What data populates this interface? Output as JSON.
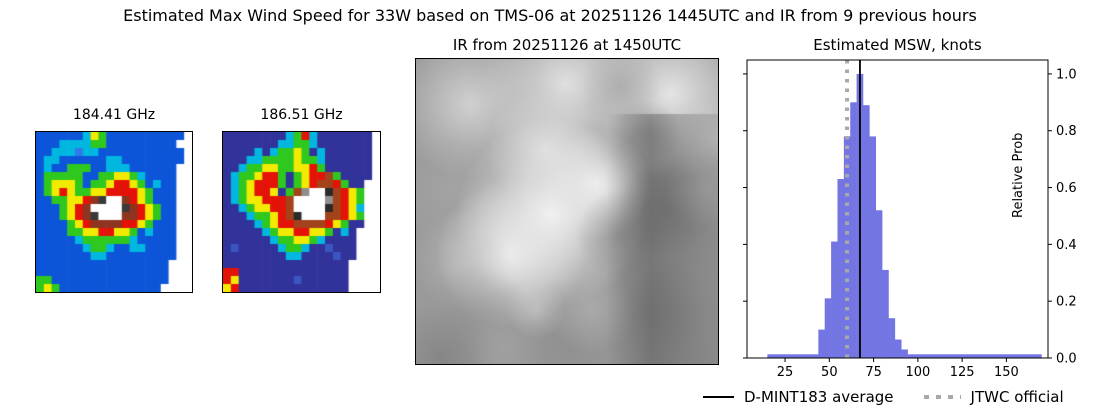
{
  "title": "Estimated Max Wind Speed for 33W based on TMS-06 at 20251126 1445UTC and IR from 9 previous hours",
  "panels": {
    "mw1": {
      "title": "184.41 GHz",
      "palette": {
        ".": "#0d55d8",
        "b": "#2f7ae8",
        "c": "#00b7e0",
        "g": "#2fc81e",
        "y": "#f2ea00",
        "o": "#ff9100",
        "r": "#e41207",
        "d": "#8d3520",
        "k": "#3a3a3a",
        "G": "#9a9a9a",
        "w": "#ffffff"
      },
      "grid": [
        "......cyg..........w",
        "...ccccgg.........ww",
        "..cccbcc...........w",
        ".cc......cc........w",
        ".c..ggg..ccc......ww",
        ".ggggg..ggyygc....ww",
        ".gyyyg.ggyrryg.c..ww",
        ".gyryggyyrrrryg...ww",
        "..ggyyrdkwwdryg...ww",
        "...gyrdwwwwkdryg..ww",
        "...gyrdkwwwddryg..ww",
        "....gyrddddrryg...ww",
        "....ggyyrryyg.c...ww",
        ".....cggggggc.....ww",
        "......cggc..cc....ww",
        ".......cc.........ww",
        ".................www",
        ".................www",
        "gg...............www",
        "gyg.............wwww"
      ]
    },
    "mw2": {
      "title": "186.51 GHz",
      "palette": {
        ".": "#32329b",
        "b": "#3c55c0",
        "c": "#00b7e0",
        "g": "#2fc81e",
        "y": "#f2ea00",
        "o": "#ff9100",
        "r": "#e41207",
        "d": "#a3431c",
        "k": "#2a2a2a",
        "G": "#8f8f8f",
        "w": "#ffffff"
      },
      "grid": [
        "........cgrc.......w",
        ".......ccggc.......w",
        "....c.cggyg.c......w",
        "...ccggggyggc......w",
        "..cggyyggyyrg......w",
        ".cggyrrg.gyrrdg....w",
        ".cgyrrrg.gyrddrg..ww",
        ".cgyrry.gdGwwkdrygww",
        ".cgyyrrrdwwwwGdrygww",
        "..cgyyrrdwwwwkdrycww",
        "...cggyrdkwwwddrygww",
        "....cgyrrddddryg..ww",
        ".....cgyyrryyg.c.www",
        "......cggyygc....www",
        ".b.....cggc..b...www",
        "........cc....b..www",
        "................wwww",
        "rr..............wwww",
        "ry.......b......wwww",
        "yr..............wwww"
      ]
    },
    "ir": {
      "title": "IR from 20251126 at 1450UTC",
      "background": "#9a9a9a",
      "blobs_xyrva": [
        [
          150,
          25,
          85,
          228,
          0.95
        ],
        [
          55,
          45,
          75,
          218,
          0.85
        ],
        [
          255,
          35,
          85,
          232,
          0.95
        ],
        [
          205,
          28,
          40,
          150,
          0.5
        ],
        [
          230,
          75,
          35,
          130,
          0.5
        ],
        [
          300,
          80,
          45,
          210,
          0.7
        ],
        [
          40,
          130,
          65,
          170,
          0.6
        ],
        [
          130,
          90,
          60,
          225,
          0.85
        ],
        [
          135,
          155,
          95,
          242,
          1
        ],
        [
          95,
          195,
          75,
          238,
          0.95
        ],
        [
          180,
          125,
          55,
          240,
          0.95
        ],
        [
          45,
          200,
          50,
          200,
          0.5
        ],
        [
          205,
          175,
          45,
          120,
          0.5
        ],
        [
          250,
          150,
          50,
          115,
          0.5
        ],
        [
          235,
          255,
          60,
          125,
          0.5
        ],
        [
          290,
          130,
          40,
          185,
          0.6
        ],
        [
          285,
          215,
          40,
          160,
          0.45
        ],
        [
          60,
          265,
          60,
          150,
          0.55
        ],
        [
          25,
          300,
          55,
          115,
          0.5
        ],
        [
          150,
          285,
          65,
          135,
          0.5
        ],
        [
          220,
          310,
          55,
          145,
          0.4
        ],
        [
          90,
          290,
          40,
          170,
          0.45
        ],
        [
          290,
          300,
          40,
          150,
          0.4
        ],
        [
          175,
          250,
          45,
          190,
          0.5
        ],
        [
          120,
          250,
          30,
          215,
          0.5
        ]
      ],
      "dark_band": {
        "x": 190,
        "w": 112,
        "alpha": 0.35
      }
    }
  },
  "chart_data": {
    "type": "bar",
    "title": "Estimated MSW, knots",
    "ylabel": "Relative Prob",
    "bin_start": 15.0,
    "bin_width": 3.6,
    "values": [
      0.013,
      0.013,
      0.013,
      0.013,
      0.013,
      0.013,
      0.013,
      0.013,
      0.1,
      0.21,
      0.41,
      0.63,
      0.78,
      0.9,
      1.0,
      0.89,
      0.78,
      0.52,
      0.31,
      0.14,
      0.065,
      0.03,
      0.013,
      0.013,
      0.013,
      0.013,
      0.013,
      0.013,
      0.013,
      0.013,
      0.013,
      0.013,
      0.013,
      0.013,
      0.013,
      0.013,
      0.013,
      0.013,
      0.013,
      0.013,
      0.013,
      0.013,
      0.013
    ],
    "xlim": [
      3.5,
      173.5
    ],
    "ylim": [
      0,
      1.049
    ],
    "xticks": [
      25,
      50,
      75,
      100,
      125,
      150
    ],
    "yticks": [
      0.0,
      0.2,
      0.4,
      0.6,
      0.8,
      1.0
    ],
    "bar_color": "#7375e3",
    "vlines": [
      {
        "name": "D-MINT183 average",
        "value": 67.3,
        "style": "solid",
        "color": "#000000"
      },
      {
        "name": "JTWC official",
        "value": 60.0,
        "style": "dotted",
        "color": "#a9a9a9"
      }
    ]
  },
  "legend": {
    "items": [
      {
        "label": "D-MINT183 average",
        "swatch": "black-solid-line"
      },
      {
        "label": "JTWC official",
        "swatch": "gray-dotted-line"
      }
    ]
  }
}
